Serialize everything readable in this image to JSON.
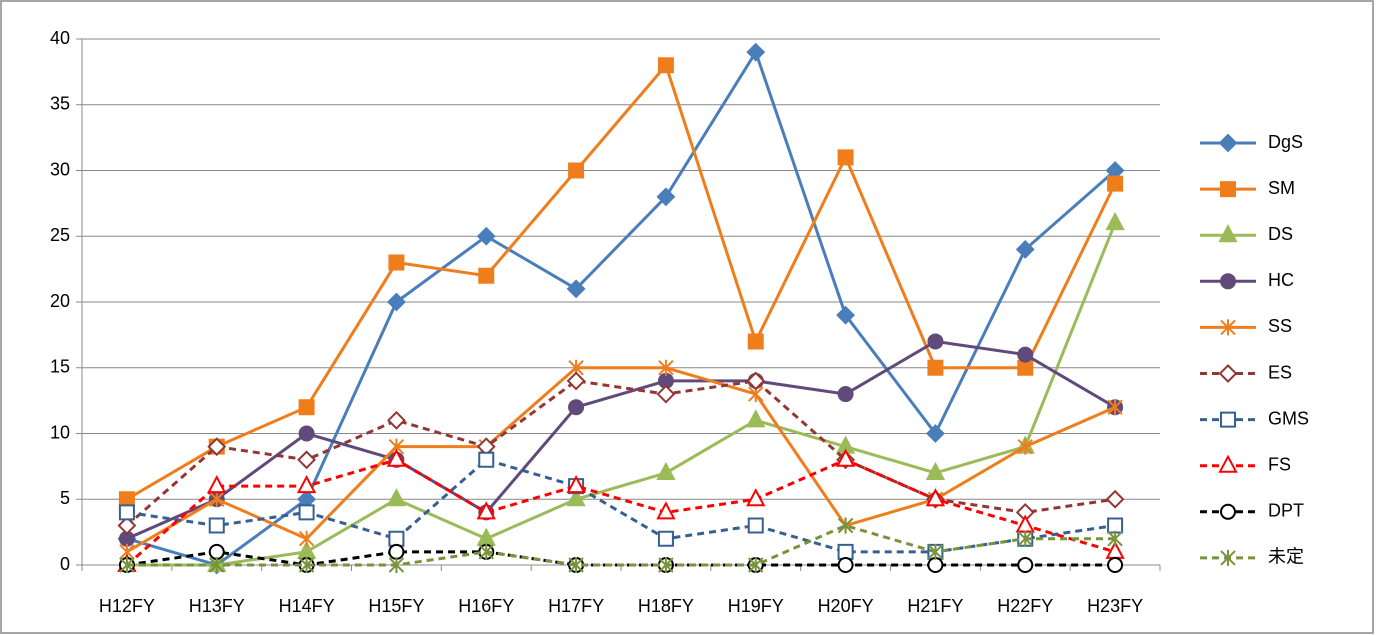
{
  "chart_data": {
    "type": "line",
    "categories": [
      "H12FY",
      "H13FY",
      "H14FY",
      "H15FY",
      "H16FY",
      "H17FY",
      "H18FY",
      "H19FY",
      "H20FY",
      "H21FY",
      "H22FY",
      "H23FY"
    ],
    "ylim": [
      0,
      40
    ],
    "yticks": [
      0,
      5,
      10,
      15,
      20,
      25,
      30,
      35,
      40
    ],
    "grid": true,
    "legend": "right",
    "series": [
      {
        "name": "DgS",
        "color": "#4a7ebb",
        "marker": "diamond",
        "filled": true,
        "dashed": false,
        "values": [
          2,
          0,
          5,
          20,
          25,
          21,
          28,
          39,
          19,
          10,
          24,
          30
        ]
      },
      {
        "name": "SM",
        "color": "#f07d1c",
        "marker": "square",
        "filled": true,
        "dashed": false,
        "values": [
          5,
          9,
          12,
          23,
          22,
          30,
          38,
          17,
          31,
          15,
          15,
          29
        ]
      },
      {
        "name": "DS",
        "color": "#9bbb59",
        "marker": "triangle",
        "filled": true,
        "dashed": false,
        "values": [
          0,
          0,
          1,
          5,
          2,
          5,
          7,
          11,
          9,
          7,
          9,
          26
        ]
      },
      {
        "name": "HC",
        "color": "#604a7b",
        "marker": "circle",
        "filled": true,
        "dashed": false,
        "values": [
          2,
          5,
          10,
          8,
          4,
          12,
          14,
          14,
          13,
          17,
          16,
          12
        ]
      },
      {
        "name": "SS",
        "color": "#f07d1c",
        "marker": "asterisk",
        "filled": false,
        "dashed": false,
        "values": [
          1,
          5,
          2,
          9,
          9,
          15,
          15,
          13,
          3,
          5,
          9,
          12
        ]
      },
      {
        "name": "ES",
        "color": "#943634",
        "marker": "diamond",
        "filled": false,
        "dashed": true,
        "values": [
          3,
          9,
          8,
          11,
          9,
          14,
          13,
          14,
          8,
          5,
          4,
          5
        ]
      },
      {
        "name": "GMS",
        "color": "#376092",
        "marker": "square",
        "filled": false,
        "dashed": true,
        "values": [
          4,
          3,
          4,
          2,
          8,
          6,
          2,
          3,
          1,
          1,
          2,
          3
        ]
      },
      {
        "name": "FS",
        "color": "#ff0000",
        "marker": "triangle",
        "filled": false,
        "dashed": true,
        "values": [
          0,
          6,
          6,
          8,
          4,
          6,
          4,
          5,
          8,
          5,
          3,
          1
        ]
      },
      {
        "name": "DPT",
        "color": "#000000",
        "marker": "circle",
        "filled": false,
        "dashed": true,
        "values": [
          0,
          1,
          0,
          1,
          1,
          0,
          0,
          0,
          0,
          0,
          0,
          0
        ]
      },
      {
        "name": "未定",
        "color": "#77933c",
        "marker": "asterisk",
        "filled": false,
        "dashed": true,
        "values": [
          0,
          0,
          0,
          0,
          1,
          0,
          0,
          0,
          3,
          1,
          2,
          2
        ]
      }
    ]
  }
}
